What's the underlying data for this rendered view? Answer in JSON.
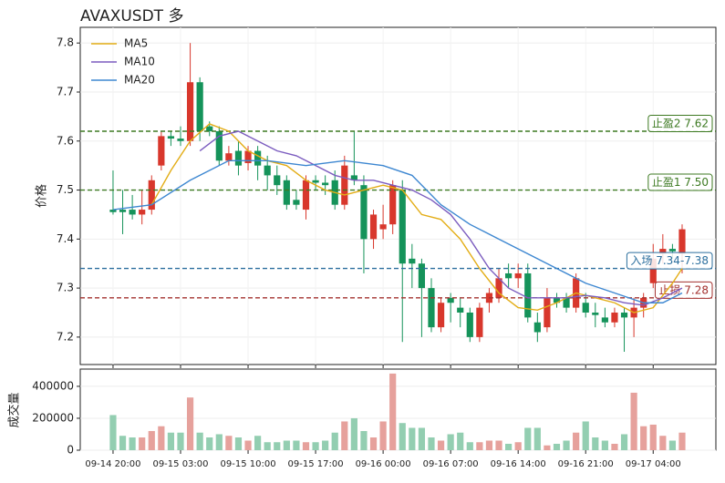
{
  "chart_data": {
    "type": "candlestick",
    "title": "AVAXUSDT 多",
    "ylabel": "价格",
    "volume_label": "成交量",
    "xlim": [
      -3.4,
      62.5
    ],
    "xticks": [
      {
        "value": 0,
        "label": "09-14 20:00"
      },
      {
        "value": 7,
        "label": "09-15 03:00"
      },
      {
        "value": 14,
        "label": "09-15 10:00"
      },
      {
        "value": 21,
        "label": "09-15 17:00"
      },
      {
        "value": 28,
        "label": "09-16 00:00"
      },
      {
        "value": 35,
        "label": "09-16 07:00"
      },
      {
        "value": 42,
        "label": "09-16 14:00"
      },
      {
        "value": 49,
        "label": "09-16 21:00"
      },
      {
        "value": 56,
        "label": "09-17 04:00"
      }
    ],
    "ylim": [
      7.144,
      7.832
    ],
    "yticks": [
      7.2,
      7.3,
      7.4,
      7.5,
      7.6,
      7.7,
      7.8
    ],
    "volume_ylim": [
      0,
      508000
    ],
    "volume_yticks": [
      0,
      200000,
      400000
    ],
    "up_color": "#d8372c",
    "down_color": "#15935a",
    "up_volume_color": "#e6a19c",
    "down_volume_color": "#93ceb1",
    "open": [
      7.46,
      7.46,
      7.46,
      7.45,
      7.46,
      7.55,
      7.61,
      7.605,
      7.6,
      7.72,
      7.63,
      7.62,
      7.56,
      7.58,
      7.555,
      7.58,
      7.55,
      7.53,
      7.52,
      7.48,
      7.46,
      7.52,
      7.515,
      7.52,
      7.47,
      7.53,
      7.51,
      7.4,
      7.42,
      7.43,
      7.5,
      7.36,
      7.35,
      7.3,
      7.22,
      7.28,
      7.26,
      7.25,
      7.2,
      7.27,
      7.28,
      7.33,
      7.32,
      7.33,
      7.23,
      7.22,
      7.28,
      7.28,
      7.26,
      7.27,
      7.25,
      7.24,
      7.23,
      7.25,
      7.24,
      7.26,
      7.31,
      7.37,
      7.38,
      7.37
    ],
    "high": [
      7.54,
      7.5,
      7.49,
      7.5,
      7.53,
      7.62,
      7.62,
      7.63,
      7.8,
      7.73,
      7.64,
      7.63,
      7.59,
      7.6,
      7.59,
      7.59,
      7.57,
      7.55,
      7.53,
      7.5,
      7.53,
      7.53,
      7.53,
      7.54,
      7.57,
      7.62,
      7.53,
      7.46,
      7.47,
      7.52,
      7.52,
      7.39,
      7.36,
      7.32,
      7.28,
      7.29,
      7.28,
      7.26,
      7.27,
      7.3,
      7.34,
      7.35,
      7.35,
      7.35,
      7.25,
      7.3,
      7.29,
      7.29,
      7.33,
      7.29,
      7.27,
      7.26,
      7.26,
      7.26,
      7.28,
      7.29,
      7.39,
      7.41,
      7.39,
      7.43
    ],
    "low": [
      7.45,
      7.41,
      7.44,
      7.43,
      7.45,
      7.54,
      7.59,
      7.59,
      7.59,
      7.6,
      7.61,
      7.55,
      7.55,
      7.53,
      7.54,
      7.52,
      7.5,
      7.49,
      7.46,
      7.46,
      7.44,
      7.5,
      7.49,
      7.46,
      7.46,
      7.51,
      7.33,
      7.38,
      7.4,
      7.41,
      7.19,
      7.3,
      7.2,
      7.21,
      7.21,
      7.23,
      7.22,
      7.19,
      7.19,
      7.25,
      7.27,
      7.3,
      7.3,
      7.23,
      7.19,
      7.21,
      7.26,
      7.25,
      7.25,
      7.24,
      7.22,
      7.22,
      7.22,
      7.17,
      7.2,
      7.24,
      7.3,
      7.35,
      7.36,
      7.33
    ],
    "close": [
      7.455,
      7.455,
      7.45,
      7.46,
      7.52,
      7.61,
      7.605,
      7.6,
      7.72,
      7.62,
      7.62,
      7.56,
      7.575,
      7.55,
      7.58,
      7.55,
      7.53,
      7.51,
      7.47,
      7.47,
      7.52,
      7.515,
      7.51,
      7.47,
      7.55,
      7.52,
      7.4,
      7.45,
      7.43,
      7.51,
      7.35,
      7.35,
      7.3,
      7.22,
      7.27,
      7.27,
      7.25,
      7.2,
      7.26,
      7.29,
      7.32,
      7.32,
      7.33,
      7.24,
      7.21,
      7.28,
      7.27,
      7.26,
      7.32,
      7.25,
      7.245,
      7.23,
      7.25,
      7.24,
      7.26,
      7.28,
      7.36,
      7.38,
      7.375,
      7.42
    ],
    "volume": [
      220000,
      90000,
      80000,
      80000,
      120000,
      150000,
      110000,
      110000,
      330000,
      110000,
      80000,
      100000,
      90000,
      80000,
      60000,
      90000,
      50000,
      50000,
      60000,
      60000,
      50000,
      50000,
      60000,
      110000,
      180000,
      200000,
      120000,
      80000,
      180000,
      480000,
      170000,
      140000,
      140000,
      80000,
      60000,
      100000,
      110000,
      50000,
      50000,
      60000,
      60000,
      40000,
      50000,
      140000,
      140000,
      30000,
      40000,
      60000,
      110000,
      180000,
      80000,
      60000,
      40000,
      100000,
      360000,
      150000,
      160000,
      90000,
      60000,
      110000
    ],
    "series": [
      {
        "name": "MA5",
        "color": "#e3ad16",
        "x": [
          4,
          6,
          8,
          10,
          12,
          14,
          16,
          18,
          20,
          22,
          24,
          26,
          28,
          30,
          32,
          34,
          36,
          38,
          40,
          42,
          44,
          46,
          48,
          50,
          52,
          54,
          56,
          58,
          59
        ],
        "values": [
          7.47,
          7.54,
          7.6,
          7.635,
          7.62,
          7.58,
          7.56,
          7.55,
          7.52,
          7.5,
          7.49,
          7.5,
          7.51,
          7.5,
          7.45,
          7.44,
          7.4,
          7.34,
          7.29,
          7.26,
          7.255,
          7.27,
          7.29,
          7.28,
          7.27,
          7.25,
          7.26,
          7.31,
          7.34
        ]
      },
      {
        "name": "MA10",
        "color": "#7b5cbf",
        "x": [
          9,
          11,
          13,
          15,
          17,
          19,
          21,
          23,
          25,
          27,
          29,
          31,
          33,
          35,
          37,
          39,
          41,
          43,
          45,
          47,
          49,
          51,
          53,
          55,
          57,
          59
        ],
        "values": [
          7.58,
          7.61,
          7.62,
          7.6,
          7.58,
          7.57,
          7.55,
          7.53,
          7.52,
          7.52,
          7.51,
          7.5,
          7.48,
          7.45,
          7.4,
          7.34,
          7.3,
          7.28,
          7.28,
          7.28,
          7.285,
          7.28,
          7.27,
          7.265,
          7.28,
          7.3
        ]
      },
      {
        "name": "MA20",
        "color": "#3d87d1",
        "x": [
          0,
          4,
          8,
          12,
          16,
          20,
          24,
          28,
          31,
          34,
          37,
          40,
          43,
          46,
          49,
          52,
          55,
          57,
          59
        ],
        "values": [
          7.46,
          7.47,
          7.52,
          7.56,
          7.56,
          7.55,
          7.56,
          7.55,
          7.53,
          7.47,
          7.43,
          7.4,
          7.37,
          7.34,
          7.31,
          7.29,
          7.27,
          7.27,
          7.29
        ]
      }
    ],
    "levels": [
      {
        "value": 7.62,
        "label": "止盈2 7.62",
        "color": "#3d7a22"
      },
      {
        "value": 7.5,
        "label": "止盈1 7.50",
        "color": "#3d7a22"
      },
      {
        "value": 7.34,
        "label": "入场 7.34-7.38",
        "color": "#2c6f9e"
      },
      {
        "value": 7.28,
        "label": "止损 7.28",
        "color": "#a3302e"
      }
    ]
  }
}
